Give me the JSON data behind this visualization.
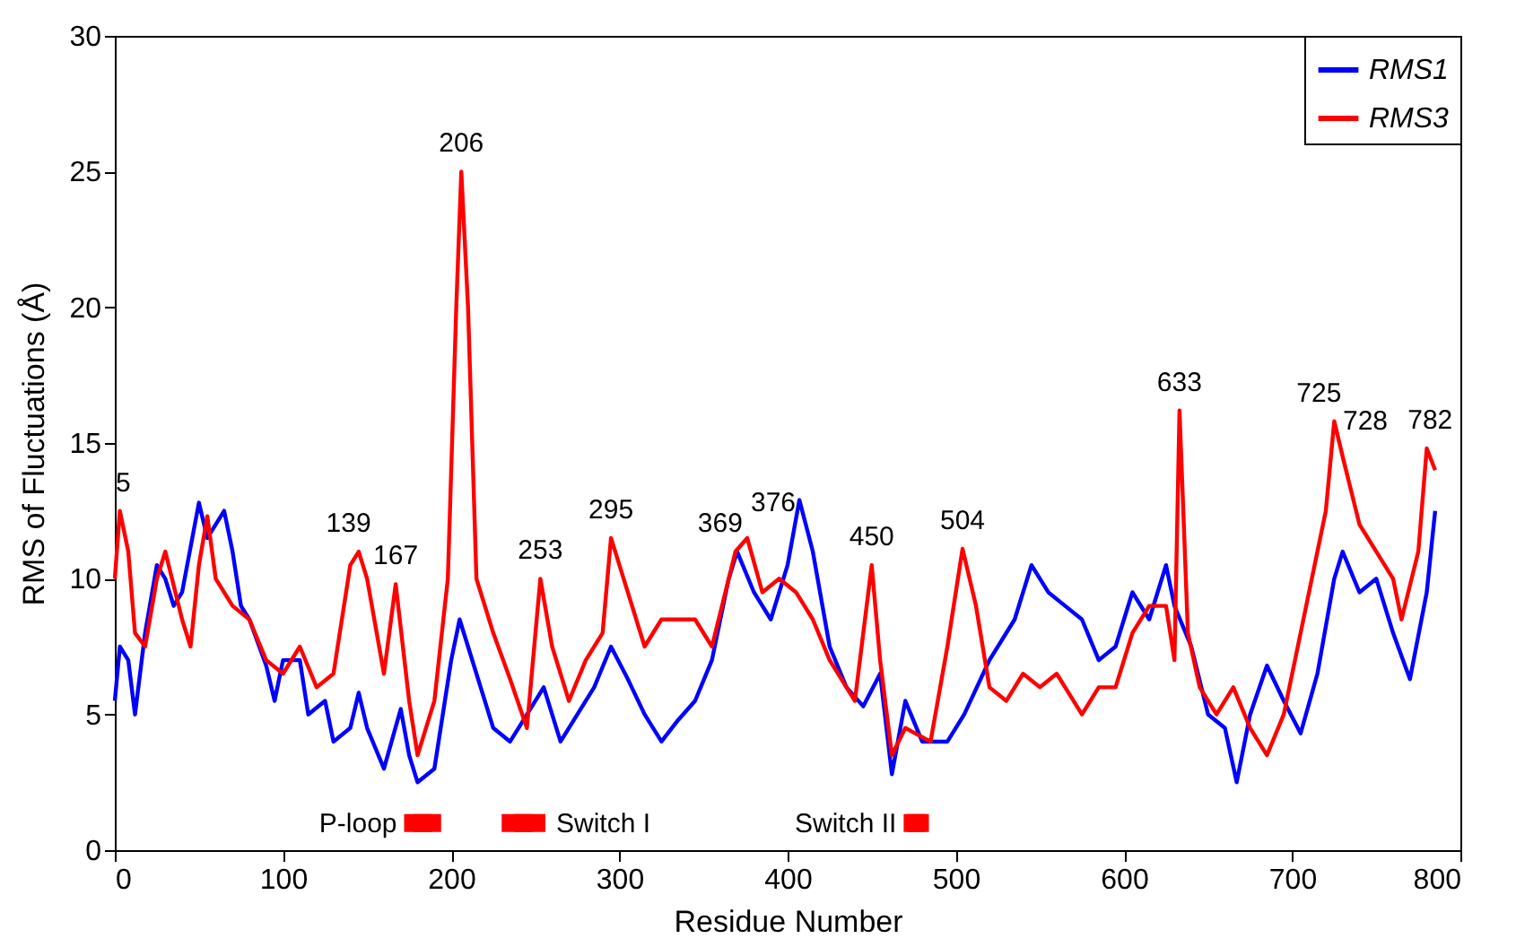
{
  "chart_data": {
    "type": "line",
    "xlabel": "Residue Number",
    "ylabel": "RMS of Fluctuations (Å)",
    "xlim": [
      0,
      800
    ],
    "ylim": [
      0,
      30
    ],
    "xticks": [
      0,
      100,
      200,
      300,
      400,
      500,
      600,
      700,
      800
    ],
    "yticks": [
      0,
      5,
      10,
      15,
      20,
      25,
      30
    ],
    "grid": false,
    "legend": "top right",
    "marker": "none",
    "line_style": "solid",
    "series": [
      {
        "name": "RMS1",
        "color": "#0000ff",
        "x": [
          0,
          3,
          8,
          12,
          18,
          25,
          30,
          35,
          40,
          50,
          55,
          60,
          65,
          70,
          75,
          80,
          90,
          95,
          100,
          110,
          115,
          125,
          130,
          140,
          145,
          150,
          160,
          170,
          175,
          180,
          190,
          200,
          205,
          210,
          215,
          225,
          235,
          240,
          250,
          255,
          265,
          275,
          285,
          295,
          305,
          315,
          325,
          335,
          345,
          355,
          365,
          370,
          380,
          390,
          400,
          407,
          415,
          425,
          435,
          445,
          455,
          462,
          470,
          480,
          495,
          505,
          520,
          535,
          545,
          555,
          565,
          575,
          585,
          595,
          605,
          615,
          625,
          630,
          640,
          650,
          660,
          667,
          675,
          685,
          695,
          705,
          715,
          725,
          730,
          740,
          750,
          760,
          770,
          780,
          785
        ],
        "values": [
          5.5,
          7.5,
          7,
          5,
          8,
          10.5,
          10,
          9,
          9.5,
          12.8,
          11.5,
          12,
          12.5,
          11,
          9,
          8.5,
          6.8,
          5.5,
          7,
          7,
          5,
          5.5,
          4,
          4.5,
          5.8,
          4.5,
          3,
          5.2,
          3.5,
          2.5,
          3,
          7,
          8.5,
          7.5,
          6.5,
          4.5,
          4,
          4.5,
          5.5,
          6,
          4,
          5,
          6,
          7.5,
          6.3,
          5,
          4,
          4.8,
          5.5,
          7,
          10,
          11,
          9.5,
          8.5,
          10.5,
          12.9,
          11,
          7.5,
          6,
          5.3,
          6.5,
          2.8,
          5.5,
          4,
          4,
          5,
          7,
          8.5,
          10.5,
          9.5,
          9,
          8.5,
          7,
          7.5,
          9.5,
          8.5,
          10.5,
          9,
          7.5,
          5,
          4.5,
          2.5,
          5,
          6.8,
          5.5,
          4.3,
          6.5,
          10,
          11,
          9.5,
          10,
          8,
          6.3,
          9.5,
          12.5
        ]
      },
      {
        "name": "RMS3",
        "color": "#ff0000",
        "x": [
          0,
          3,
          8,
          12,
          18,
          25,
          30,
          40,
          45,
          50,
          55,
          60,
          70,
          80,
          90,
          100,
          110,
          120,
          130,
          140,
          145,
          150,
          160,
          167,
          175,
          180,
          190,
          198,
          203,
          206,
          210,
          215,
          225,
          235,
          245,
          253,
          260,
          270,
          280,
          290,
          295,
          305,
          315,
          325,
          335,
          345,
          355,
          369,
          376,
          385,
          395,
          405,
          415,
          425,
          440,
          450,
          455,
          462,
          470,
          485,
          495,
          504,
          512,
          520,
          530,
          540,
          550,
          560,
          575,
          585,
          595,
          605,
          615,
          625,
          630,
          633,
          638,
          645,
          655,
          665,
          675,
          685,
          695,
          705,
          715,
          720,
          725,
          730,
          740,
          750,
          760,
          765,
          775,
          780,
          785
        ],
        "values": [
          10,
          12.5,
          11,
          8,
          7.5,
          10,
          11,
          8.5,
          7.5,
          10.5,
          12.3,
          10,
          9,
          8.5,
          7,
          6.5,
          7.5,
          6,
          6.5,
          10.5,
          11,
          10,
          6.5,
          9.8,
          5.5,
          3.5,
          5.5,
          10,
          20,
          25,
          20,
          10,
          8,
          6.3,
          4.5,
          10,
          7.5,
          5.5,
          7,
          8,
          11.5,
          9.5,
          7.5,
          8.5,
          8.5,
          8.5,
          7.5,
          11,
          11.5,
          9.5,
          10,
          9.5,
          8.5,
          7,
          5.5,
          10.5,
          7,
          3.5,
          4.5,
          4,
          7.5,
          11.1,
          9,
          6,
          5.5,
          6.5,
          6,
          6.5,
          5,
          6,
          6,
          8,
          9,
          9,
          7,
          16.2,
          8,
          6,
          5,
          6,
          4.5,
          3.5,
          5,
          8,
          11,
          12.5,
          15.8,
          14.5,
          12,
          11,
          10,
          8.5,
          11,
          14.8,
          14
        ]
      },
      {
        "type": "scatter",
        "color": "#ff0000",
        "marker": "square",
        "x": [
          183,
          243,
          476.5
        ],
        "values": [
          1,
          1,
          1
        ],
        "xerrors": [
          11,
          13,
          7.5
        ]
      }
    ],
    "annotations": [
      {
        "text": "P-loop",
        "x": 172,
        "y": 1
      },
      {
        "text": "Switch I",
        "x": 256,
        "y": 1
      },
      {
        "text": "Switch II",
        "x": 469,
        "y": 1
      },
      {
        "text": "5",
        "x": 5,
        "y": 12.5
      },
      {
        "text": "139",
        "x": 139,
        "y": 11
      },
      {
        "text": "167",
        "x": 167,
        "y": 9.8
      },
      {
        "text": "206",
        "x": 206,
        "y": 25
      },
      {
        "text": "253",
        "x": 253,
        "y": 10
      },
      {
        "text": "295",
        "x": 295,
        "y": 11.5
      },
      {
        "text": "369",
        "x": 369,
        "y": 11
      },
      {
        "text": "376",
        "x": 376,
        "y": 11.5
      },
      {
        "text": "450",
        "x": 450,
        "y": 10.5
      },
      {
        "text": "504",
        "x": 504,
        "y": 11.1
      },
      {
        "text": "633",
        "x": 633,
        "y": 16.2
      },
      {
        "text": "725",
        "x": 725,
        "y": 15.8
      },
      {
        "text": "728",
        "x": 728,
        "y": 14.5
      },
      {
        "text": "782",
        "x": 782,
        "y": 14.8
      }
    ]
  }
}
